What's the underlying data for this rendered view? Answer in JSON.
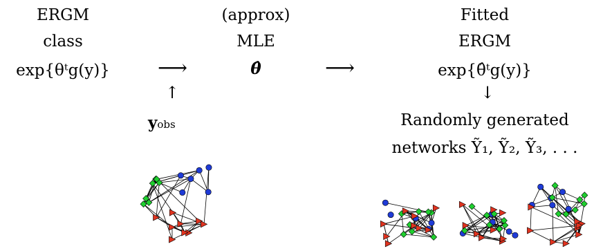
{
  "col_model": {
    "line1": "ERGM",
    "line2": "class",
    "formula": "exp{θᵗg(y)}"
  },
  "col_mle": {
    "line1": "(approx)",
    "line2": "MLE",
    "symbol": "θ̂"
  },
  "col_fitted": {
    "line1": "Fitted",
    "line2": "ERGM",
    "formula": "exp{θ̂ᵗg(y)}",
    "line4": "Randomly generated",
    "line5": "networks Ỹ₁, Ỹ₂, Ỹ₃, . . ."
  },
  "obs": {
    "label": "y",
    "subscript": "obs"
  },
  "arrows": {
    "right": "⟶",
    "up": "↑",
    "down": "↓"
  },
  "colors": {
    "blue": "#1f3bd6",
    "green": "#1fcf2f",
    "red": "#e0331f",
    "edge": "#000000"
  }
}
